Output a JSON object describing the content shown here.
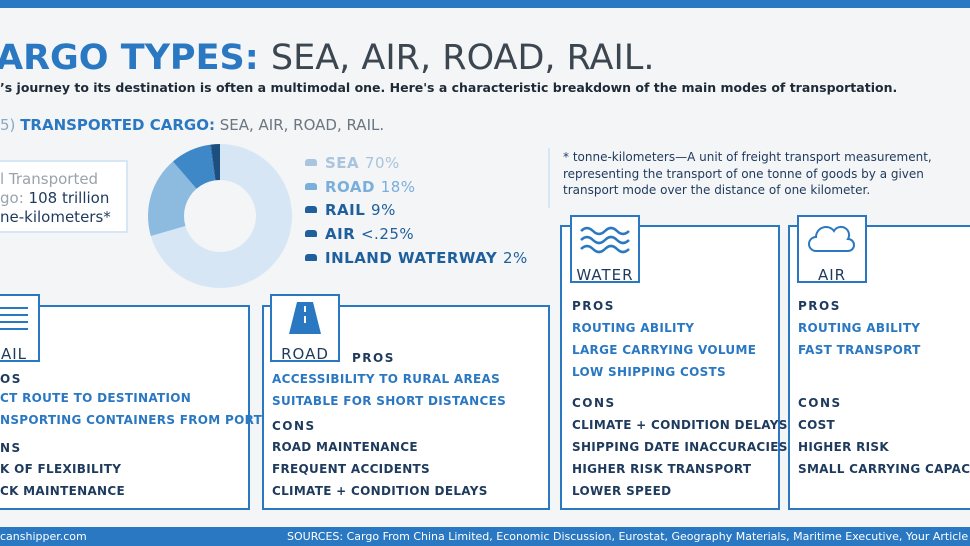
{
  "header": {
    "title_bold": "ARGO TYPES:",
    "title_light": "SEA, AIR, ROAD, RAIL.",
    "subtitle": "’s journey to its destination is often a multimodal one. Here's a characteristic breakdown of the main modes of transportation."
  },
  "section": {
    "prefix": "5)",
    "bold": "TRANSPORTED CARGO:",
    "light": "SEA, AIR, ROAD, RAIL."
  },
  "total_box": {
    "line1": "l Transported",
    "line2_a": "go:",
    "line2_b": "108 trillion",
    "line3": "ne-kilometers*"
  },
  "chart_data": {
    "type": "pie",
    "categories": [
      "SEA",
      "ROAD",
      "RAIL",
      "AIR",
      "INLAND WATERWAY"
    ],
    "values": [
      70,
      18,
      9,
      0.25,
      2
    ],
    "value_labels": [
      "70%",
      "18%",
      "9%",
      "<.25%",
      "2%"
    ],
    "colors": [
      "#d6e6f4",
      "#8dbbe0",
      "#3f88c8",
      "#2a6fb0",
      "#1c4f80"
    ],
    "legend_colors": [
      "#a9c4dc",
      "#7aaedb",
      "#1f5f9c",
      "#1f5f9c",
      "#1f5f9c"
    ]
  },
  "note": [
    "* tonne-kilometers—A unit of freight transport measurement,",
    "representing the transport of one tonne of goods by a given",
    "transport mode over the distance of one kilometer."
  ],
  "cards": [
    {
      "title": "AIL",
      "pros_label": "OS",
      "pros": [
        "CT ROUTE TO DESTINATION",
        "NSPORTING CONTAINERS FROM PORT"
      ],
      "cons_label": "NS",
      "cons": [
        "K OF FLEXIBILITY",
        "CK MAINTENANCE"
      ]
    },
    {
      "title": "ROAD",
      "pros_label": "PROS",
      "pros": [
        "ACCESSIBILITY TO RURAL AREAS",
        "SUITABLE FOR SHORT DISTANCES"
      ],
      "cons_label": "CONS",
      "cons": [
        "ROAD MAINTENANCE",
        "FREQUENT ACCIDENTS",
        "CLIMATE + CONDITION DELAYS"
      ]
    },
    {
      "title": "WATER",
      "pros_label": "PROS",
      "pros": [
        "ROUTING ABILITY",
        "LARGE CARRYING VOLUME",
        "LOW SHIPPING COSTS"
      ],
      "cons_label": "CONS",
      "cons": [
        "CLIMATE + CONDITION DELAYS",
        "SHIPPING DATE INACCURACIES",
        "HIGHER RISK TRANSPORT",
        "LOWER SPEED"
      ]
    },
    {
      "title": "AIR",
      "pros_label": "PROS",
      "pros": [
        "ROUTING ABILITY",
        "FAST TRANSPORT"
      ],
      "cons_label": "CONS",
      "cons": [
        "COST",
        "HIGHER RISK",
        "SMALL CARRYING CAPACIT"
      ]
    }
  ],
  "footer": {
    "site": "canshipper.com",
    "sources_label": "SOURCES:",
    "sources": "Cargo From China Limited, Economic Discussion, Eurostat, Geography Materials, Maritime Executive, Your Article L"
  }
}
